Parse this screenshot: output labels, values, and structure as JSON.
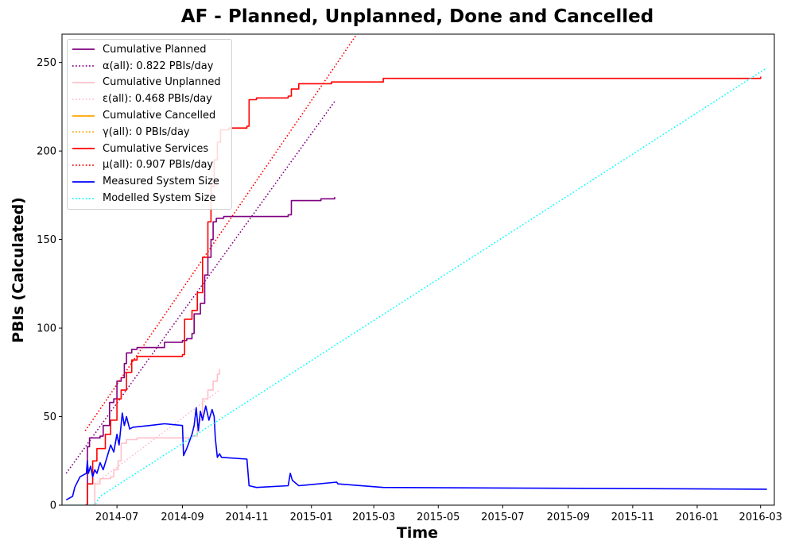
{
  "chart_data": {
    "type": "line",
    "title": "AF - Planned, Unplanned, Done  and Cancelled",
    "xlabel": "Time",
    "ylabel": "PBIs (Calculated)",
    "x_axis_type": "date",
    "xlim": [
      "2014-05-10",
      "2016-03-14"
    ],
    "ylim": [
      0,
      266
    ],
    "xticks": [
      "2014-07",
      "2014-09",
      "2014-11",
      "2015-01",
      "2015-03",
      "2015-05",
      "2015-07",
      "2015-09",
      "2015-11",
      "2016-01",
      "2016-03"
    ],
    "yticks": [
      0,
      50,
      100,
      150,
      200,
      250
    ],
    "grid": false,
    "legend_position": "top-left",
    "series": [
      {
        "name": "Cumulative Planned",
        "color": "#800080",
        "style": "solid",
        "step": true,
        "points": [
          [
            "2014-06-01",
            0
          ],
          [
            "2014-06-03",
            33
          ],
          [
            "2014-06-05",
            38
          ],
          [
            "2014-06-15",
            39
          ],
          [
            "2014-06-18",
            45
          ],
          [
            "2014-06-24",
            58
          ],
          [
            "2014-06-28",
            60
          ],
          [
            "2014-07-01",
            70
          ],
          [
            "2014-07-05",
            72
          ],
          [
            "2014-07-08",
            80
          ],
          [
            "2014-07-10",
            86
          ],
          [
            "2014-07-15",
            88
          ],
          [
            "2014-07-20",
            89
          ],
          [
            "2014-08-15",
            92
          ],
          [
            "2014-09-01",
            93
          ],
          [
            "2014-09-05",
            94
          ],
          [
            "2014-09-10",
            97
          ],
          [
            "2014-09-12",
            108
          ],
          [
            "2014-09-18",
            114
          ],
          [
            "2014-09-22",
            130
          ],
          [
            "2014-09-25",
            140
          ],
          [
            "2014-09-28",
            150
          ],
          [
            "2014-09-30",
            160
          ],
          [
            "2014-10-03",
            162
          ],
          [
            "2014-10-10",
            163
          ],
          [
            "2014-12-10",
            164
          ],
          [
            "2014-12-13",
            172
          ],
          [
            "2015-01-10",
            173
          ],
          [
            "2015-01-23",
            174
          ]
        ]
      },
      {
        "name": "α(all): 0.822 PBIs/day",
        "color": "#800080",
        "style": "dotted",
        "points": [
          [
            "2014-05-14",
            18
          ],
          [
            "2015-01-23",
            228
          ]
        ]
      },
      {
        "name": "Cumulative Unplanned",
        "color": "#ffc0cb",
        "style": "solid",
        "step": true,
        "points": [
          [
            "2014-06-08",
            0
          ],
          [
            "2014-06-10",
            12
          ],
          [
            "2014-06-15",
            15
          ],
          [
            "2014-06-25",
            16
          ],
          [
            "2014-06-28",
            20
          ],
          [
            "2014-07-02",
            25
          ],
          [
            "2014-07-05",
            35
          ],
          [
            "2014-07-10",
            37
          ],
          [
            "2014-07-20",
            38
          ],
          [
            "2014-09-10",
            39
          ],
          [
            "2014-09-15",
            48
          ],
          [
            "2014-09-20",
            60
          ],
          [
            "2014-09-25",
            65
          ],
          [
            "2014-09-30",
            70
          ],
          [
            "2014-10-04",
            74
          ],
          [
            "2014-10-06",
            77
          ]
        ]
      },
      {
        "name": "ε(all): 0.468 PBIs/day",
        "color": "#ffc0cb",
        "style": "dotted",
        "points": [
          [
            "2014-06-10",
            12
          ],
          [
            "2014-10-06",
            65
          ]
        ]
      },
      {
        "name": "Cumulative Cancelled",
        "color": "#ffa500",
        "style": "solid",
        "points": []
      },
      {
        "name": "γ(all): 0 PBIs/day",
        "color": "#ffa500",
        "style": "dotted",
        "points": []
      },
      {
        "name": "Cumulative Services",
        "color": "#ff0000",
        "style": "solid",
        "step": true,
        "points": [
          [
            "2014-06-01",
            0
          ],
          [
            "2014-06-03",
            12
          ],
          [
            "2014-06-08",
            25
          ],
          [
            "2014-06-12",
            32
          ],
          [
            "2014-06-20",
            40
          ],
          [
            "2014-06-25",
            48
          ],
          [
            "2014-07-01",
            60
          ],
          [
            "2014-07-05",
            65
          ],
          [
            "2014-07-10",
            75
          ],
          [
            "2014-07-15",
            82
          ],
          [
            "2014-07-20",
            84
          ],
          [
            "2014-09-01",
            85
          ],
          [
            "2014-09-03",
            105
          ],
          [
            "2014-09-10",
            110
          ],
          [
            "2014-09-15",
            120
          ],
          [
            "2014-09-20",
            140
          ],
          [
            "2014-09-25",
            160
          ],
          [
            "2014-09-28",
            180
          ],
          [
            "2014-10-01",
            195
          ],
          [
            "2014-10-04",
            205
          ],
          [
            "2014-10-07",
            212
          ],
          [
            "2014-10-15",
            213
          ],
          [
            "2014-11-01",
            214
          ],
          [
            "2014-11-03",
            229
          ],
          [
            "2014-11-10",
            230
          ],
          [
            "2014-12-10",
            231
          ],
          [
            "2014-12-13",
            235
          ],
          [
            "2014-12-20",
            238
          ],
          [
            "2015-01-20",
            239
          ],
          [
            "2015-03-10",
            241
          ],
          [
            "2016-03-01",
            242
          ]
        ]
      },
      {
        "name": "μ(all): 0.907 PBIs/day",
        "color": "#ff0000",
        "style": "dotted",
        "points": [
          [
            "2014-06-01",
            42
          ],
          [
            "2015-02-13",
            266
          ]
        ]
      },
      {
        "name": "Measured System Size",
        "color": "#0000ff",
        "style": "solid",
        "points": [
          [
            "2014-05-14",
            3
          ],
          [
            "2014-05-20",
            5
          ],
          [
            "2014-05-22",
            10
          ],
          [
            "2014-05-27",
            16
          ],
          [
            "2014-06-02",
            18
          ],
          [
            "2014-06-03",
            25
          ],
          [
            "2014-06-04",
            18
          ],
          [
            "2014-06-06",
            22
          ],
          [
            "2014-06-08",
            16
          ],
          [
            "2014-06-10",
            20
          ],
          [
            "2014-06-12",
            18
          ],
          [
            "2014-06-15",
            24
          ],
          [
            "2014-06-18",
            20
          ],
          [
            "2014-06-22",
            28
          ],
          [
            "2014-06-25",
            34
          ],
          [
            "2014-06-28",
            30
          ],
          [
            "2014-07-01",
            40
          ],
          [
            "2014-07-03",
            34
          ],
          [
            "2014-07-06",
            52
          ],
          [
            "2014-07-08",
            45
          ],
          [
            "2014-07-10",
            50
          ],
          [
            "2014-07-13",
            43
          ],
          [
            "2014-07-16",
            44
          ],
          [
            "2014-08-01",
            45
          ],
          [
            "2014-08-15",
            46
          ],
          [
            "2014-09-01",
            45
          ],
          [
            "2014-09-02",
            28
          ],
          [
            "2014-09-05",
            32
          ],
          [
            "2014-09-10",
            40
          ],
          [
            "2014-09-12",
            45
          ],
          [
            "2014-09-14",
            55
          ],
          [
            "2014-09-16",
            42
          ],
          [
            "2014-09-18",
            53
          ],
          [
            "2014-09-20",
            48
          ],
          [
            "2014-09-23",
            56
          ],
          [
            "2014-09-26",
            48
          ],
          [
            "2014-09-29",
            54
          ],
          [
            "2014-10-01",
            50
          ],
          [
            "2014-10-02",
            38
          ],
          [
            "2014-10-04",
            27
          ],
          [
            "2014-10-06",
            29
          ],
          [
            "2014-10-08",
            27
          ],
          [
            "2014-11-01",
            26
          ],
          [
            "2014-11-03",
            11
          ],
          [
            "2014-11-10",
            10
          ],
          [
            "2014-12-10",
            11
          ],
          [
            "2014-12-12",
            18
          ],
          [
            "2014-12-14",
            14
          ],
          [
            "2014-12-20",
            11
          ],
          [
            "2015-01-25",
            13
          ],
          [
            "2015-01-26",
            12
          ],
          [
            "2015-03-10",
            10
          ],
          [
            "2016-03-07",
            9
          ]
        ]
      },
      {
        "name": "Modelled System Size",
        "color": "#00ffff",
        "style": "dotted",
        "points": [
          [
            "2014-05-14",
            0
          ],
          [
            "2014-06-10",
            0
          ],
          [
            "2014-06-15",
            5
          ],
          [
            "2016-03-07",
            247
          ]
        ]
      }
    ]
  }
}
